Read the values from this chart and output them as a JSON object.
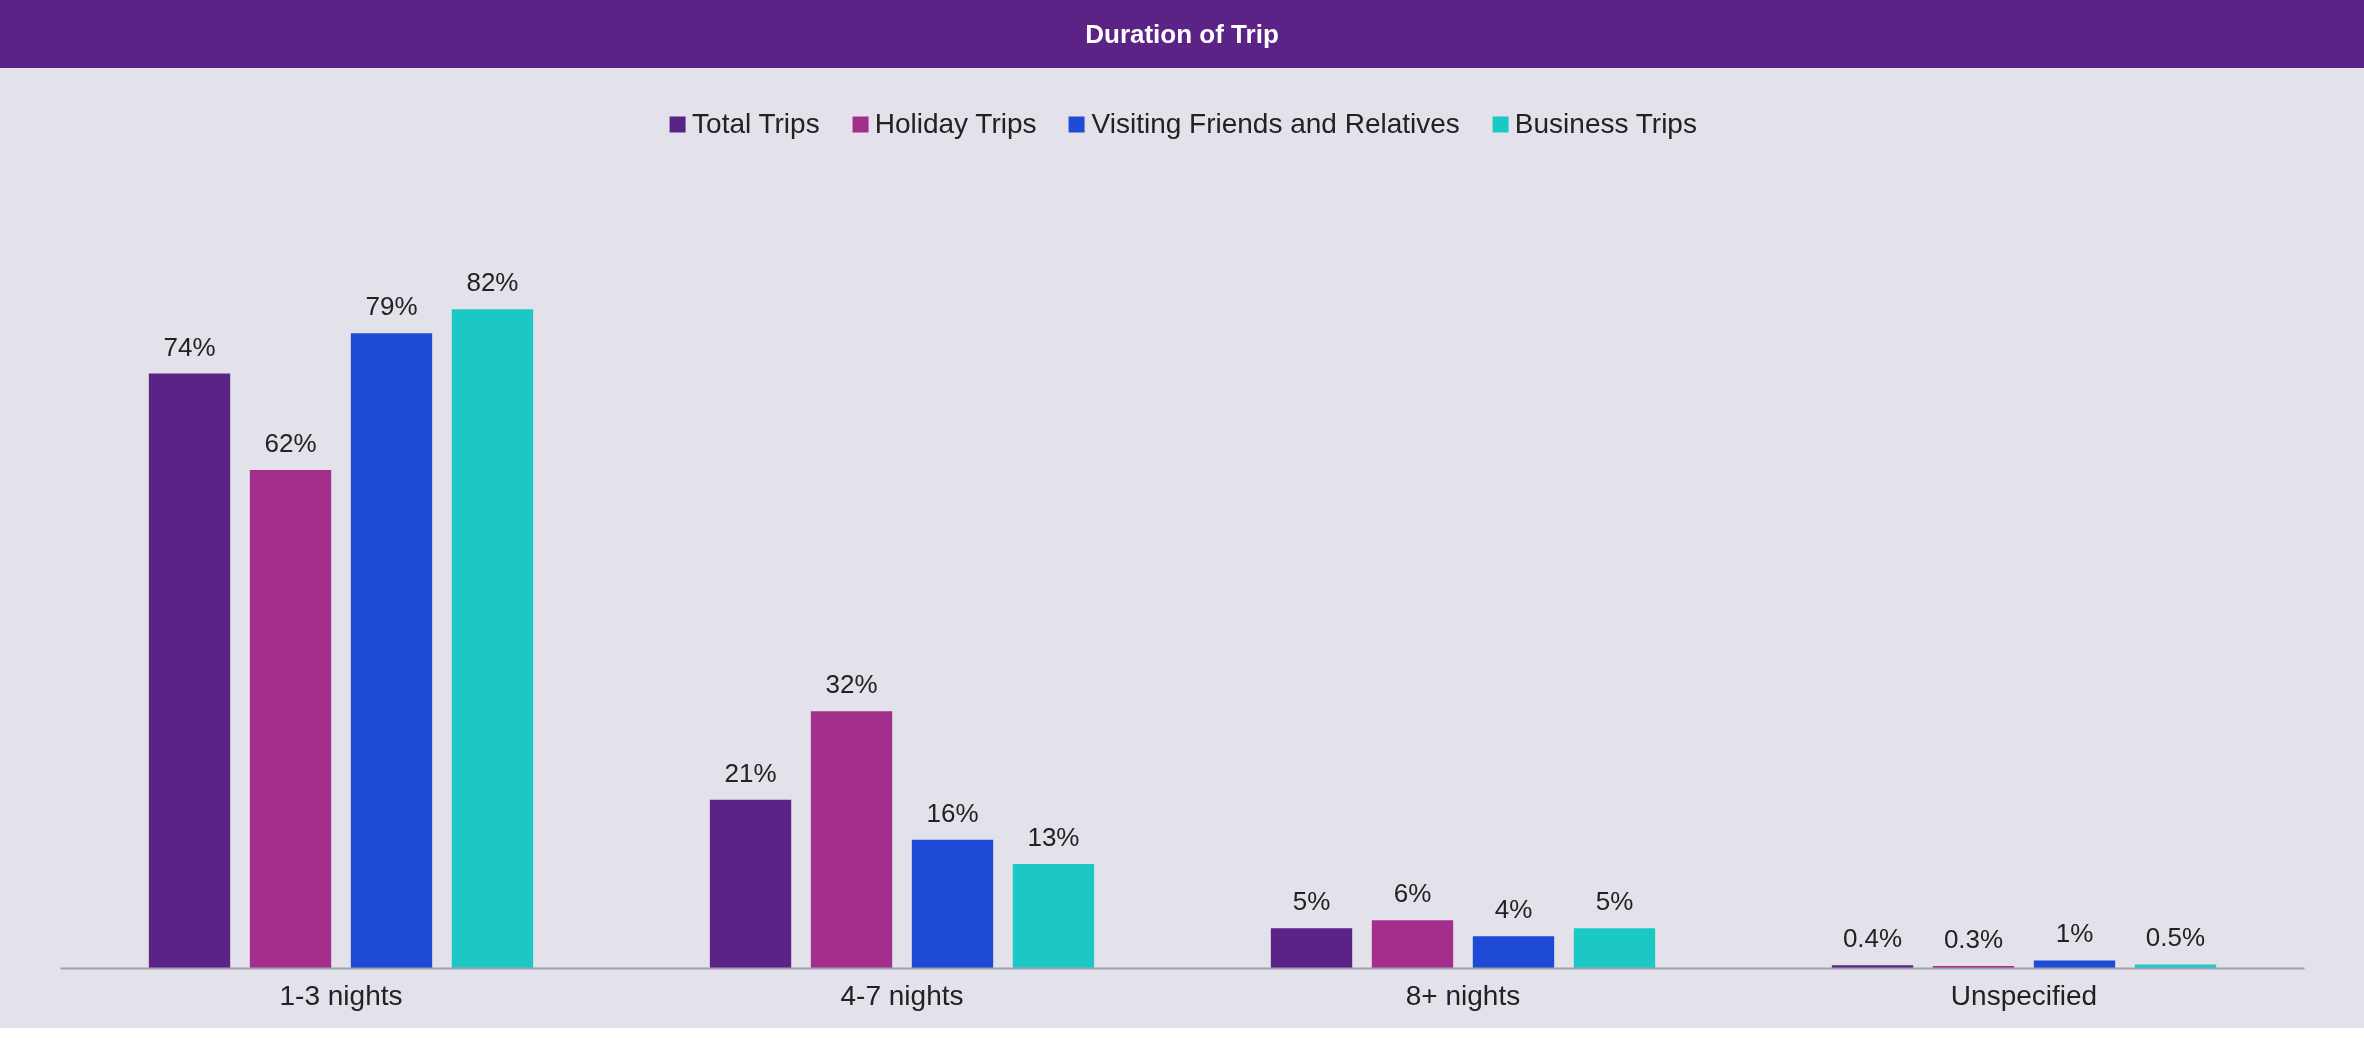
{
  "chart_data": {
    "type": "bar",
    "title": "Duration of Trip",
    "categories": [
      "1-3 nights",
      "4-7 nights",
      "8+ nights",
      "Unspecified"
    ],
    "series": [
      {
        "name": "Total Trips",
        "color": "#5b2385",
        "values": [
          74,
          21,
          5,
          0.4
        ],
        "value_labels": [
          "74%",
          "21%",
          "5%",
          "0.4%"
        ]
      },
      {
        "name": "Holiday Trips",
        "color": "#a32e8c",
        "values": [
          62,
          32,
          6,
          0.3
        ],
        "value_labels": [
          "62%",
          "32%",
          "6%",
          "0.3%"
        ]
      },
      {
        "name": "Visiting Friends and Relatives",
        "color": "#1f4ad6",
        "values": [
          79,
          16,
          4,
          1
        ],
        "value_labels": [
          "79%",
          "16%",
          "4%",
          "1%"
        ]
      },
      {
        "name": "Business Trips",
        "color": "#1bc8c6",
        "values": [
          82,
          13,
          5,
          0.5
        ],
        "value_labels": [
          "82%",
          "13%",
          "5%",
          "0.5%"
        ]
      }
    ],
    "legend": "top"
  }
}
